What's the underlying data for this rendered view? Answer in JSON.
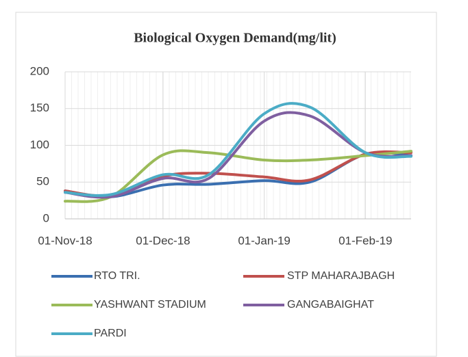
{
  "chart_data": {
    "type": "line",
    "title": "Biological Oxygen Demand(mg/lit)",
    "x": [
      "2018-11-01",
      "2018-11-15",
      "2018-12-01",
      "2018-12-15",
      "2019-01-01",
      "2019-01-15",
      "2019-02-01",
      "2019-02-15"
    ],
    "series": [
      {
        "name": "RTO TRI.",
        "color": "#3a6fb0",
        "values": [
          38,
          30,
          46,
          47,
          52,
          50,
          88,
          86
        ]
      },
      {
        "name": "STP MAHARAJBAGH",
        "color": "#c0504d",
        "values": [
          38,
          32,
          58,
          62,
          57,
          53,
          88,
          90
        ]
      },
      {
        "name": "YASHWANT STADIUM",
        "color": "#9bbb59",
        "values": [
          24,
          30,
          87,
          90,
          80,
          80,
          86,
          92
        ]
      },
      {
        "name": "GANGABAIGHAT",
        "color": "#7f5fa0",
        "values": [
          36,
          30,
          55,
          55,
          133,
          140,
          90,
          86
        ]
      },
      {
        "name": "PARDI",
        "color": "#4bacc6",
        "values": [
          36,
          33,
          60,
          60,
          143,
          152,
          90,
          85
        ]
      }
    ],
    "xlim": [
      "2018-11-01",
      "2019-02-15"
    ],
    "xticks": [
      {
        "value": "2018-11-01",
        "label": "01-Nov-18"
      },
      {
        "value": "2018-12-01",
        "label": "01-Dec-18"
      },
      {
        "value": "2019-01-01",
        "label": "01-Jan-19"
      },
      {
        "value": "2019-02-01",
        "label": "01-Feb-19"
      }
    ],
    "ylim": [
      0,
      200
    ],
    "yticks": [
      0,
      50,
      100,
      150,
      200
    ],
    "grid": true,
    "smooth": true,
    "legend": "bottom"
  }
}
